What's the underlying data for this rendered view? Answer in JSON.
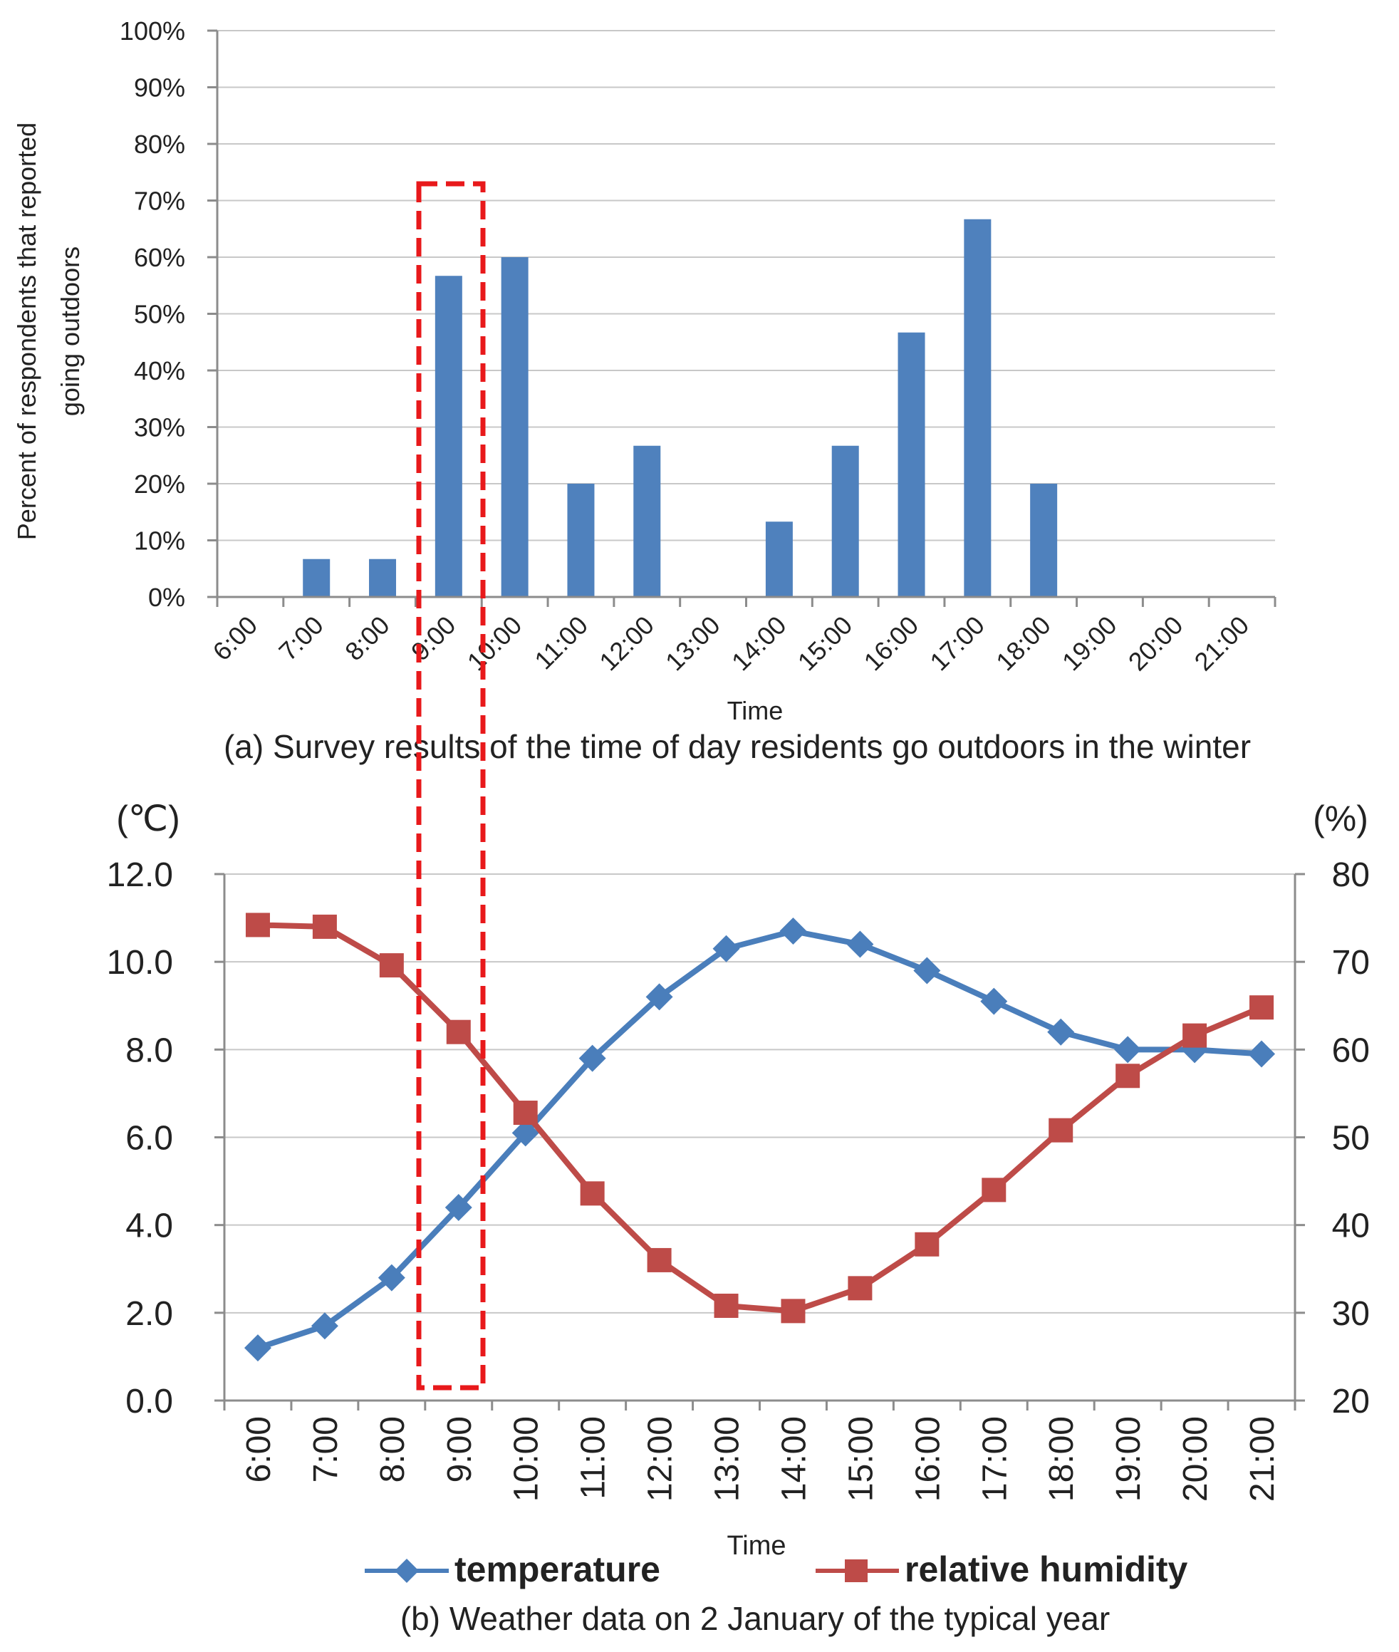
{
  "chart_data": [
    {
      "type": "bar",
      "title": "(a) Survey results of the time of day residents go outdoors in the winter",
      "xlabel": "Time",
      "ylabel_line1": "Percent of respondents that reported",
      "ylabel_line2": "going outdoors",
      "ylim": [
        0,
        100
      ],
      "yticks": [
        "0%",
        "10%",
        "20%",
        "30%",
        "40%",
        "50%",
        "60%",
        "70%",
        "80%",
        "90%",
        "100%"
      ],
      "categories": [
        "6:00",
        "7:00",
        "8:00",
        "9:00",
        "10:00",
        "11:00",
        "12:00",
        "13:00",
        "14:00",
        "15:00",
        "16:00",
        "17:00",
        "18:00",
        "19:00",
        "20:00",
        "21:00"
      ],
      "values": [
        0,
        6.7,
        6.7,
        56.7,
        60,
        20,
        26.7,
        0,
        13.3,
        26.7,
        46.7,
        66.7,
        20,
        0,
        0,
        0
      ],
      "bar_color": "#4f81bd",
      "grid": true
    },
    {
      "type": "line",
      "title": "(b)   Weather data on 2 January of the typical year",
      "xlabel": "Time",
      "y_left_unit": "(℃)",
      "y_right_unit": "(%)",
      "y_left_lim": [
        0,
        12
      ],
      "y_right_lim": [
        20,
        80
      ],
      "y_left_ticks": [
        "0.0",
        "2.0",
        "4.0",
        "6.0",
        "8.0",
        "10.0",
        "12.0"
      ],
      "y_right_ticks": [
        "20",
        "30",
        "40",
        "50",
        "60",
        "70",
        "80"
      ],
      "categories": [
        "6:00",
        "7:00",
        "8:00",
        "9:00",
        "10:00",
        "11:00",
        "12:00",
        "13:00",
        "14:00",
        "15:00",
        "16:00",
        "17:00",
        "18:00",
        "19:00",
        "20:00",
        "21:00"
      ],
      "series": [
        {
          "name": "temperature",
          "axis": "left",
          "color": "#4a7ebb",
          "marker": "diamond",
          "values": [
            1.2,
            1.7,
            2.8,
            4.4,
            6.1,
            7.8,
            9.2,
            10.3,
            10.7,
            10.4,
            9.8,
            9.1,
            8.4,
            8.0,
            8.0,
            7.9
          ]
        },
        {
          "name": "relative humidity",
          "axis": "right",
          "color": "#be4b48",
          "marker": "square",
          "values": [
            74.2,
            74.0,
            69.6,
            62.0,
            52.8,
            43.6,
            36.0,
            30.8,
            30.2,
            32.8,
            37.8,
            44.0,
            50.8,
            57.0,
            61.6,
            64.8
          ]
        }
      ],
      "highlight": {
        "category": "9:00",
        "color": "#e8191b",
        "style": "dashed"
      },
      "grid": true
    }
  ]
}
